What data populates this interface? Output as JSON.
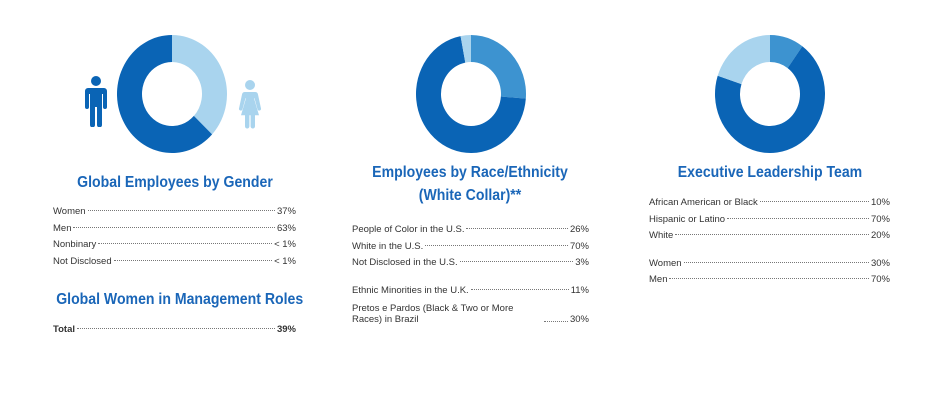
{
  "colors": {
    "dark": "#0a64b5",
    "mid": "#3d93d0",
    "light": "#a9d4ee",
    "title": "#1a66b8"
  },
  "icons": [
    "male-figure-icon",
    "female-figure-icon"
  ],
  "gender": {
    "title": "Global Employees by Gender",
    "rows": [
      {
        "label": "Women",
        "value": "37%"
      },
      {
        "label": "Men",
        "value": "63%"
      },
      {
        "label": "Nonbinary",
        "value": "< 1%"
      },
      {
        "label": "Not Disclosed",
        "value": "< 1%"
      }
    ],
    "mgmt_title": "Global Women in Management Roles",
    "mgmt_row": {
      "label": "Total",
      "value": "39%"
    }
  },
  "race": {
    "title_line1": "Employees by Race/Ethnicity",
    "title_line2": "(White Collar)**",
    "rows": [
      {
        "label": "People of Color in the U.S.",
        "value": "26%"
      },
      {
        "label": "White in the U.S.",
        "value": "70%"
      },
      {
        "label": "Not Disclosed in the U.S.",
        "value": "3%"
      }
    ],
    "rows2": [
      {
        "label": "Ethnic Minorities in the U.K.",
        "value": "11%"
      },
      {
        "label": "Pretos e Pardos (Black & Two or More Races) in Brazil",
        "value": "30%"
      }
    ]
  },
  "exec": {
    "title": "Executive Leadership Team",
    "rows": [
      {
        "label": "African American or Black",
        "value": "10%"
      },
      {
        "label": "Hispanic or Latino",
        "value": "70%"
      },
      {
        "label": "White",
        "value": "20%"
      }
    ],
    "rows2": [
      {
        "label": "Women",
        "value": "30%"
      },
      {
        "label": "Men",
        "value": "70%"
      }
    ]
  },
  "chart_data": [
    {
      "type": "pie",
      "categories": [
        "Women",
        "Men"
      ],
      "values": [
        37,
        63
      ],
      "colors": [
        "#a9d4ee",
        "#0a64b5"
      ]
    },
    {
      "type": "pie",
      "categories": [
        "People of Color in the U.S.",
        "White in the U.S.",
        "Not Disclosed in the U.S."
      ],
      "values": [
        26,
        70,
        3
      ],
      "colors": [
        "#3d93d0",
        "#0a64b5",
        "#a9d4ee"
      ]
    },
    {
      "type": "pie",
      "categories": [
        "African American or Black",
        "Hispanic or Latino",
        "White"
      ],
      "values": [
        10,
        70,
        20
      ],
      "colors": [
        "#3d93d0",
        "#0a64b5",
        "#a9d4ee"
      ]
    }
  ]
}
